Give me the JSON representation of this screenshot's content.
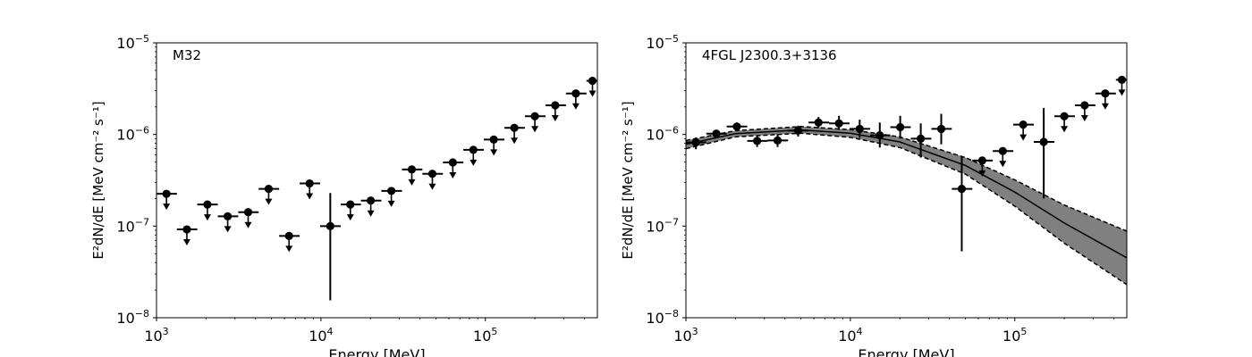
{
  "chart_data": [
    {
      "type": "scatter",
      "annotation": "M32",
      "xlabel": "Energy [MeV]",
      "ylabel": "E²dN/dE [MeV cm⁻² s⁻¹]",
      "xscale": "log",
      "yscale": "log",
      "xlim": [
        1000,
        480000
      ],
      "ylim": [
        1e-08,
        1e-05
      ],
      "xticks": [
        {
          "mant": "10",
          "exp": "3",
          "value": 1000
        },
        {
          "mant": "10",
          "exp": "4",
          "value": 10000
        },
        {
          "mant": "10",
          "exp": "5",
          "value": 100000
        }
      ],
      "yticks": [
        {
          "mant": "10",
          "exp": "−8",
          "value": 1e-08
        },
        {
          "mant": "10",
          "exp": "−7",
          "value": 1e-07
        },
        {
          "mant": "10",
          "exp": "−6",
          "value": 1e-06
        },
        {
          "mant": "10",
          "exp": "−5",
          "value": 1e-05
        }
      ],
      "points": [
        {
          "x": 1150,
          "xlo": 1000,
          "xhi": 1330,
          "y": 2.25e-07,
          "upper_limit": true
        },
        {
          "x": 1530,
          "xlo": 1330,
          "xhi": 1770,
          "y": 9.2e-08,
          "upper_limit": true
        },
        {
          "x": 2040,
          "xlo": 1770,
          "xhi": 2360,
          "y": 1.72e-07,
          "upper_limit": true
        },
        {
          "x": 2710,
          "xlo": 2360,
          "xhi": 3140,
          "y": 1.28e-07,
          "upper_limit": true
        },
        {
          "x": 3610,
          "xlo": 3140,
          "xhi": 4180,
          "y": 1.42e-07,
          "upper_limit": true
        },
        {
          "x": 4810,
          "xlo": 4180,
          "xhi": 5570,
          "y": 2.55e-07,
          "upper_limit": true
        },
        {
          "x": 6400,
          "xlo": 5570,
          "xhi": 7420,
          "y": 7.8e-08,
          "upper_limit": true
        },
        {
          "x": 8530,
          "xlo": 7420,
          "xhi": 9880,
          "y": 2.92e-07,
          "upper_limit": true
        },
        {
          "x": 11400,
          "xlo": 9880,
          "xhi": 13200,
          "y": 1e-07,
          "ylo": 1.55e-08,
          "yhi": 2.3e-07,
          "upper_limit": false
        },
        {
          "x": 15100,
          "xlo": 13200,
          "xhi": 17500,
          "y": 1.72e-07,
          "upper_limit": true
        },
        {
          "x": 20100,
          "xlo": 17500,
          "xhi": 23300,
          "y": 1.9e-07,
          "upper_limit": true
        },
        {
          "x": 26800,
          "xlo": 23300,
          "xhi": 31100,
          "y": 2.42e-07,
          "upper_limit": true
        },
        {
          "x": 35700,
          "xlo": 31100,
          "xhi": 41400,
          "y": 4.15e-07,
          "upper_limit": true
        },
        {
          "x": 47600,
          "xlo": 41400,
          "xhi": 55200,
          "y": 3.72e-07,
          "upper_limit": true
        },
        {
          "x": 63400,
          "xlo": 55200,
          "xhi": 73500,
          "y": 4.95e-07,
          "upper_limit": true
        },
        {
          "x": 84500,
          "xlo": 73500,
          "xhi": 97900,
          "y": 6.8e-07,
          "upper_limit": true
        },
        {
          "x": 112500,
          "xlo": 97900,
          "xhi": 130500,
          "y": 8.8e-07,
          "upper_limit": true
        },
        {
          "x": 150000,
          "xlo": 130500,
          "xhi": 174000,
          "y": 1.18e-06,
          "upper_limit": true
        },
        {
          "x": 200000,
          "xlo": 174000,
          "xhi": 232000,
          "y": 1.58e-06,
          "upper_limit": true
        },
        {
          "x": 266000,
          "xlo": 232000,
          "xhi": 309000,
          "y": 2.08e-06,
          "upper_limit": true
        },
        {
          "x": 355000,
          "xlo": 309000,
          "xhi": 412000,
          "y": 2.8e-06,
          "upper_limit": true
        },
        {
          "x": 448000,
          "xlo": 412000,
          "xhi": 480000,
          "y": 3.85e-06,
          "upper_limit": true
        }
      ]
    },
    {
      "type": "scatter",
      "annotation": "4FGL J2300.3+3136",
      "xlabel": "Energy [MeV]",
      "ylabel": "E²dN/dE [MeV cm⁻² s⁻¹]",
      "xscale": "log",
      "yscale": "log",
      "xlim": [
        1000,
        480000
      ],
      "ylim": [
        1e-08,
        1e-05
      ],
      "xticks": [
        {
          "mant": "10",
          "exp": "3",
          "value": 1000
        },
        {
          "mant": "10",
          "exp": "4",
          "value": 10000
        },
        {
          "mant": "10",
          "exp": "5",
          "value": 100000
        }
      ],
      "yticks": [
        {
          "mant": "10",
          "exp": "−8",
          "value": 1e-08
        },
        {
          "mant": "10",
          "exp": "−7",
          "value": 1e-07
        },
        {
          "mant": "10",
          "exp": "−6",
          "value": 1e-06
        },
        {
          "mant": "10",
          "exp": "−5",
          "value": 1e-05
        }
      ],
      "model": {
        "color": "#808080",
        "best_fit": [
          [
            1000,
            7.8e-07
          ],
          [
            2000,
            1.02e-06
          ],
          [
            5000,
            1.12e-06
          ],
          [
            10000,
            1.03e-06
          ],
          [
            20000,
            8.3e-07
          ],
          [
            50000,
            4.6e-07
          ],
          [
            100000,
            2.35e-07
          ],
          [
            200000,
            1.08e-07
          ],
          [
            480000,
            4.5e-08
          ]
        ],
        "upper": [
          [
            1000,
            8.6e-07
          ],
          [
            2000,
            1.1e-06
          ],
          [
            5000,
            1.22e-06
          ],
          [
            10000,
            1.13e-06
          ],
          [
            20000,
            9.4e-07
          ],
          [
            50000,
            5.6e-07
          ],
          [
            100000,
            3.2e-07
          ],
          [
            200000,
            1.7e-07
          ],
          [
            480000,
            8.8e-08
          ]
        ],
        "lower": [
          [
            1000,
            7e-07
          ],
          [
            2000,
            9.4e-07
          ],
          [
            5000,
            1.03e-06
          ],
          [
            10000,
            9.3e-07
          ],
          [
            20000,
            7.2e-07
          ],
          [
            50000,
            3.7e-07
          ],
          [
            100000,
            1.65e-07
          ],
          [
            200000,
            6.5e-08
          ],
          [
            480000,
            2.3e-08
          ]
        ]
      },
      "points": [
        {
          "x": 1150,
          "xlo": 1000,
          "xhi": 1330,
          "y": 8.2e-07,
          "ylo": 6.9e-07,
          "yhi": 9.3e-07,
          "upper_limit": false
        },
        {
          "x": 1530,
          "xlo": 1330,
          "xhi": 1770,
          "y": 1.02e-06,
          "ylo": 9.2e-07,
          "yhi": 1.12e-06,
          "upper_limit": false
        },
        {
          "x": 2040,
          "xlo": 1770,
          "xhi": 2360,
          "y": 1.22e-06,
          "ylo": 1.1e-06,
          "yhi": 1.35e-06,
          "upper_limit": false
        },
        {
          "x": 2710,
          "xlo": 2360,
          "xhi": 3140,
          "y": 8.5e-07,
          "ylo": 7.3e-07,
          "yhi": 9.8e-07,
          "upper_limit": false
        },
        {
          "x": 3610,
          "xlo": 3140,
          "xhi": 4180,
          "y": 8.6e-07,
          "ylo": 7.3e-07,
          "yhi": 1e-06,
          "upper_limit": false
        },
        {
          "x": 4810,
          "xlo": 4180,
          "xhi": 5570,
          "y": 1.1e-06,
          "ylo": 9.5e-07,
          "yhi": 1.25e-06,
          "upper_limit": false
        },
        {
          "x": 6400,
          "xlo": 5570,
          "xhi": 7420,
          "y": 1.35e-06,
          "ylo": 1.18e-06,
          "yhi": 1.55e-06,
          "upper_limit": false
        },
        {
          "x": 8530,
          "xlo": 7420,
          "xhi": 9880,
          "y": 1.32e-06,
          "ylo": 1.12e-06,
          "yhi": 1.6e-06,
          "upper_limit": false
        },
        {
          "x": 11400,
          "xlo": 9880,
          "xhi": 13200,
          "y": 1.15e-06,
          "ylo": 9.2e-07,
          "yhi": 1.45e-06,
          "upper_limit": false
        },
        {
          "x": 15100,
          "xlo": 13200,
          "xhi": 17500,
          "y": 9.8e-07,
          "ylo": 7.2e-07,
          "yhi": 1.35e-06,
          "upper_limit": false
        },
        {
          "x": 20100,
          "xlo": 17500,
          "xhi": 23300,
          "y": 1.2e-06,
          "ylo": 9e-07,
          "yhi": 1.6e-06,
          "upper_limit": false
        },
        {
          "x": 26800,
          "xlo": 23300,
          "xhi": 31100,
          "y": 9e-07,
          "ylo": 5.6e-07,
          "yhi": 1.32e-06,
          "upper_limit": false
        },
        {
          "x": 35700,
          "xlo": 31100,
          "xhi": 41400,
          "y": 1.15e-06,
          "ylo": 7.8e-07,
          "yhi": 1.68e-06,
          "upper_limit": false
        },
        {
          "x": 47600,
          "xlo": 41400,
          "xhi": 55200,
          "y": 2.55e-07,
          "ylo": 5.3e-08,
          "yhi": 5.8e-07,
          "upper_limit": false
        },
        {
          "x": 63400,
          "xlo": 55200,
          "xhi": 73500,
          "y": 5.2e-07,
          "upper_limit": true
        },
        {
          "x": 84500,
          "xlo": 73500,
          "xhi": 97900,
          "y": 6.6e-07,
          "upper_limit": true
        },
        {
          "x": 112500,
          "xlo": 97900,
          "xhi": 130500,
          "y": 1.28e-06,
          "upper_limit": true
        },
        {
          "x": 150000,
          "xlo": 130500,
          "xhi": 174000,
          "y": 8.3e-07,
          "ylo": 2e-07,
          "yhi": 1.95e-06,
          "upper_limit": false
        },
        {
          "x": 200000,
          "xlo": 174000,
          "xhi": 232000,
          "y": 1.58e-06,
          "upper_limit": true
        },
        {
          "x": 266000,
          "xlo": 232000,
          "xhi": 309000,
          "y": 2.08e-06,
          "upper_limit": true
        },
        {
          "x": 355000,
          "xlo": 309000,
          "xhi": 412000,
          "y": 2.8e-06,
          "upper_limit": true
        },
        {
          "x": 448000,
          "xlo": 412000,
          "xhi": 480000,
          "y": 3.95e-06,
          "upper_limit": true
        }
      ]
    }
  ]
}
